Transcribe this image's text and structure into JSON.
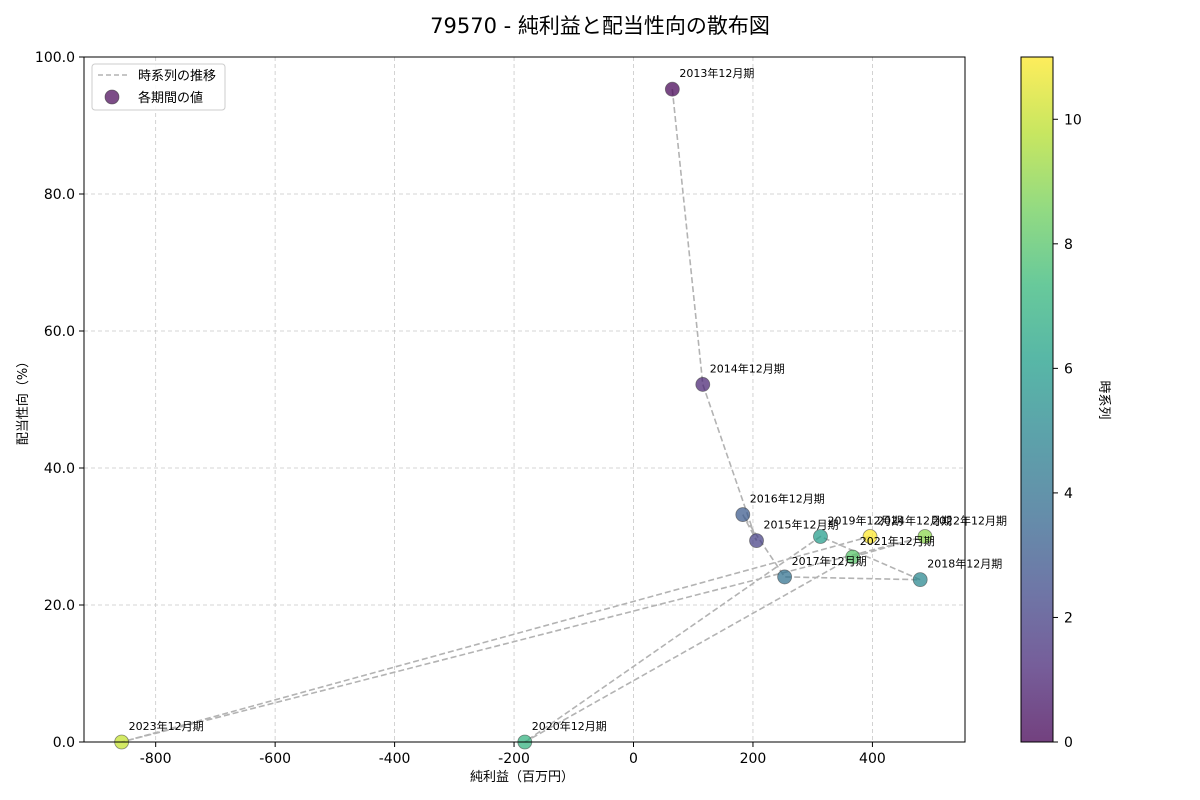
{
  "chart_data": {
    "type": "scatter",
    "title": "79570 - 純利益と配当性向の散布図",
    "xlabel": "純利益（百万円）",
    "ylabel": "配当性向（%）",
    "xlim": [
      -920,
      555
    ],
    "ylim": [
      0,
      100
    ],
    "xticks": [
      -800,
      -600,
      -400,
      -200,
      0,
      200,
      400
    ],
    "xtick_labels": [
      "-800",
      "-600",
      "-400",
      "-200",
      "0",
      "200",
      "400"
    ],
    "yticks": [
      0,
      20,
      40,
      60,
      80,
      100
    ],
    "ytick_labels": [
      "0.0",
      "20.0",
      "40.0",
      "60.0",
      "80.0",
      "100.0"
    ],
    "grid": true,
    "legend": {
      "position": "top-left",
      "entries": [
        {
          "label": "時系列の推移",
          "kind": "line"
        },
        {
          "label": "各期間の値",
          "kind": "marker"
        }
      ]
    },
    "colorbar": {
      "label": "時系列",
      "range": [
        0,
        11
      ],
      "ticks": [
        0,
        2,
        4,
        6,
        8,
        10
      ],
      "tick_labels": [
        "0",
        "2",
        "4",
        "6",
        "8",
        "10"
      ],
      "colormap": "viridis"
    },
    "points": [
      {
        "label": "2013年12月期",
        "x": 65,
        "y": 95.3,
        "t": 0
      },
      {
        "label": "2014年12月期",
        "x": 116,
        "y": 52.2,
        "t": 1
      },
      {
        "label": "2015年12月期",
        "x": 206,
        "y": 29.4,
        "t": 2
      },
      {
        "label": "2016年12月期",
        "x": 183,
        "y": 33.2,
        "t": 3
      },
      {
        "label": "2017年12月期",
        "x": 253,
        "y": 24.1,
        "t": 4
      },
      {
        "label": "2018年12月期",
        "x": 480,
        "y": 23.7,
        "t": 5
      },
      {
        "label": "2019年12月期",
        "x": 313,
        "y": 30.0,
        "t": 6
      },
      {
        "label": "2020年12月期",
        "x": -182,
        "y": 0.0,
        "t": 7
      },
      {
        "label": "2021年12月期",
        "x": 367,
        "y": 27.0,
        "t": 8
      },
      {
        "label": "2022年12月期",
        "x": 488,
        "y": 30.0,
        "t": 9
      },
      {
        "label": "2023年12月期",
        "x": -857,
        "y": 0.0,
        "t": 10
      },
      {
        "label": "2024年12月期",
        "x": 396,
        "y": 30.0,
        "t": 11
      }
    ],
    "colors": {
      "line": "#b3b3b3",
      "grid": "#c8c8c8",
      "legend_marker": "#440154"
    }
  }
}
